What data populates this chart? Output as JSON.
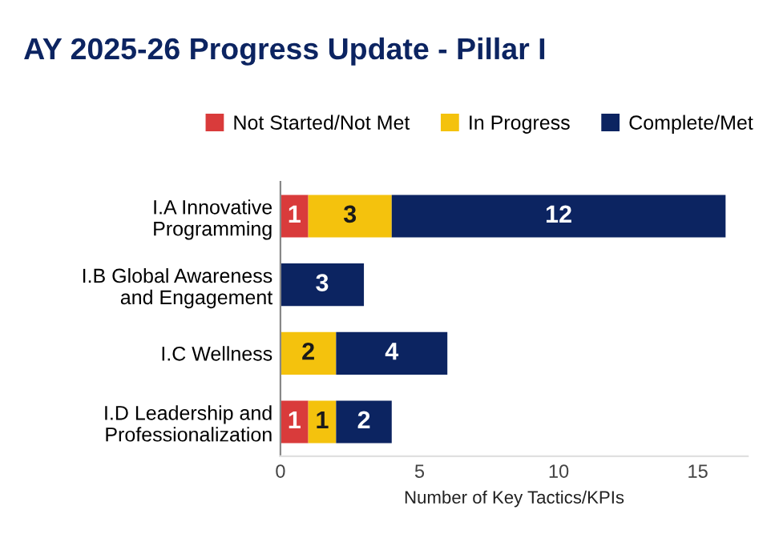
{
  "chart_data": {
    "type": "bar",
    "orientation": "horizontal",
    "stacked": true,
    "title": "AY 2025-26 Progress Update - Pillar I",
    "xlabel": "Number of Key Tactics/KPIs",
    "categories": [
      "I.A Innovative Programming",
      "I.B Global Awareness and Engagement",
      "I.C Wellness",
      "I.D Leadership and Professionalization"
    ],
    "series": [
      {
        "name": "Not Started/Not Met",
        "color": "#d93b3b",
        "values": [
          1,
          null,
          null,
          1
        ]
      },
      {
        "name": "In Progress",
        "color": "#f4c20d",
        "values": [
          3,
          null,
          2,
          1
        ]
      },
      {
        "name": "Complete/Met",
        "color": "#0c2461",
        "values": [
          12,
          3,
          4,
          2
        ]
      }
    ],
    "xlim": [
      0,
      16.8
    ],
    "xticks": [
      0,
      5,
      10,
      15
    ],
    "data_labels": true,
    "grid": false,
    "legend": "top"
  }
}
